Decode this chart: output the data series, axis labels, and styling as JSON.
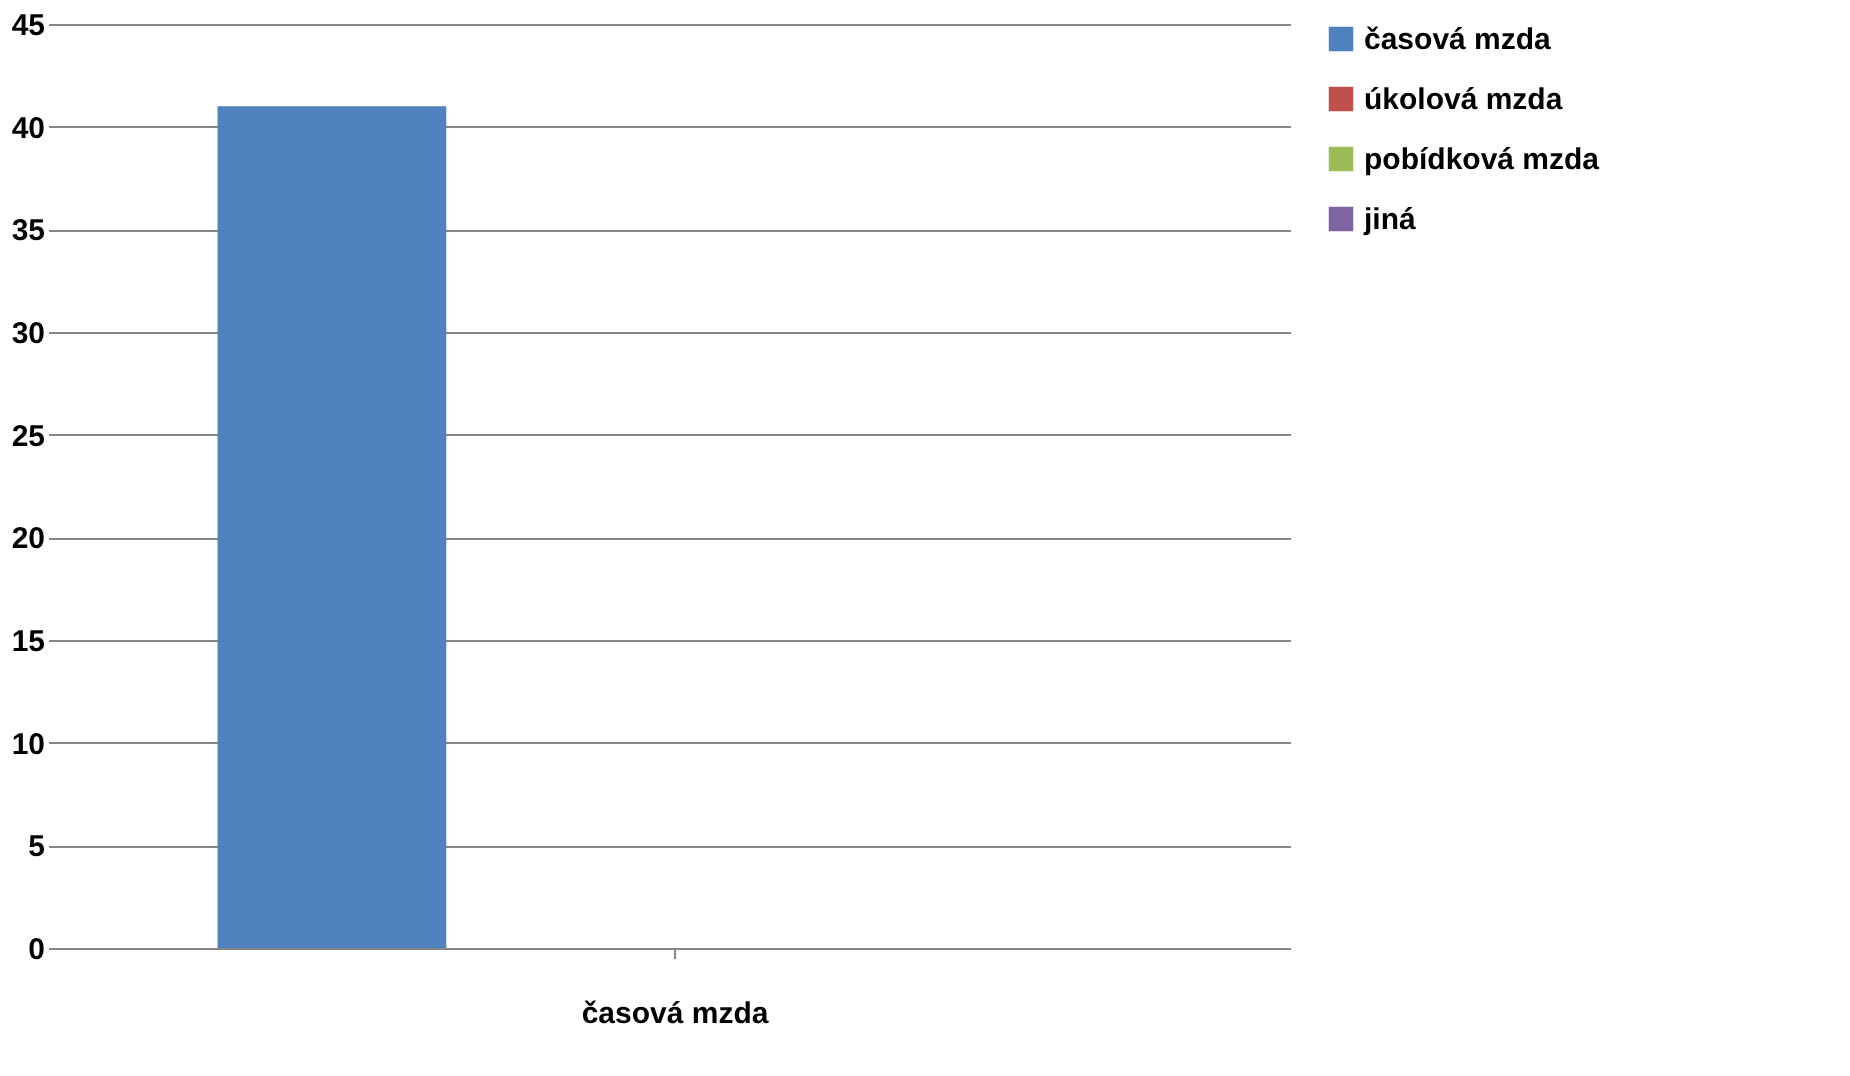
{
  "chart_data": {
    "type": "bar",
    "categories": [
      "časová mzda"
    ],
    "series": [
      {
        "name": "časová mzda",
        "color": "#4f81bd",
        "values": [
          41
        ]
      },
      {
        "name": "úkolová mzda",
        "color": "#c0504d",
        "values": [
          0
        ]
      },
      {
        "name": "pobídková mzda",
        "color": "#9bbb59",
        "values": [
          0
        ]
      },
      {
        "name": "jiná",
        "color": "#8064a2",
        "values": [
          0
        ]
      }
    ],
    "ylim": [
      0,
      45
    ],
    "yticks": [
      0,
      5,
      10,
      15,
      20,
      25,
      30,
      35,
      40,
      45
    ],
    "grid": "y",
    "legend": "right"
  }
}
